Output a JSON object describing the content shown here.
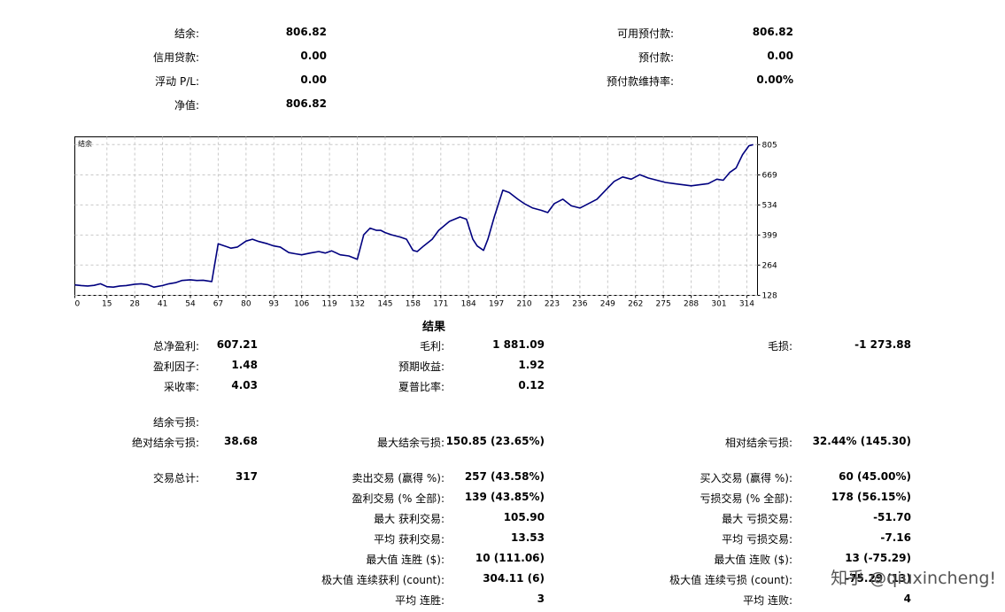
{
  "summary": {
    "balance_label": "结余:",
    "balance": "806.82",
    "credit_label": "信用贷款:",
    "credit": "0.00",
    "floating_label": "浮动 P/L:",
    "floating": "0.00",
    "equity_label": "净值:",
    "equity": "806.82",
    "free_margin_label": "可用预付款:",
    "free_margin": "806.82",
    "margin_label": "预付款:",
    "margin": "0.00",
    "margin_level_label": "预付款维持率:",
    "margin_level": "0.00%"
  },
  "chart_data": {
    "type": "line",
    "series": [
      {
        "name": "结余",
        "color": "#00007f",
        "x": [
          0,
          3,
          6,
          9,
          12,
          15,
          18,
          21,
          24,
          28,
          31,
          34,
          37,
          41,
          44,
          47,
          50,
          54,
          57,
          60,
          64,
          67,
          70,
          73,
          76,
          80,
          83,
          86,
          90,
          93,
          96,
          100,
          103,
          106,
          110,
          114,
          117,
          120,
          124,
          128,
          132,
          135,
          138,
          141,
          143,
          145,
          148,
          152,
          155,
          158,
          160,
          163,
          167,
          170,
          175,
          180,
          183,
          186,
          188,
          191,
          193,
          196,
          200,
          203,
          207,
          210,
          214,
          218,
          221,
          224,
          228,
          232,
          236,
          240,
          244,
          248,
          252,
          256,
          260,
          264,
          268,
          272,
          276,
          280,
          284,
          288,
          292,
          296,
          298,
          300,
          303,
          306,
          309,
          312,
          315,
          317
        ],
        "y": [
          175,
          172,
          170,
          173,
          180,
          167,
          165,
          170,
          172,
          178,
          180,
          176,
          165,
          172,
          180,
          185,
          195,
          198,
          195,
          196,
          190,
          360,
          350,
          340,
          345,
          372,
          380,
          370,
          360,
          350,
          345,
          320,
          315,
          310,
          318,
          325,
          318,
          328,
          310,
          305,
          290,
          400,
          430,
          420,
          420,
          410,
          400,
          390,
          380,
          330,
          325,
          350,
          380,
          420,
          460,
          480,
          470,
          380,
          350,
          330,
          380,
          480,
          600,
          590,
          560,
          540,
          520,
          510,
          500,
          540,
          560,
          530,
          520,
          540,
          560,
          600,
          640,
          660,
          650,
          670,
          655,
          645,
          635,
          630,
          625,
          620,
          625,
          630,
          640,
          650,
          645,
          680,
          700,
          760,
          800,
          805
        ]
      }
    ],
    "title": "结余",
    "xticks": [
      "0",
      "15",
      "28",
      "41",
      "54",
      "67",
      "80",
      "93",
      "106",
      "119",
      "132",
      "145",
      "158",
      "171",
      "184",
      "197",
      "210",
      "223",
      "236",
      "249",
      "262",
      "275",
      "288",
      "301",
      "314"
    ],
    "yticks": [
      "805",
      "669",
      "534",
      "399",
      "264",
      "128"
    ],
    "xlim": [
      0,
      319
    ],
    "ylim": [
      128,
      840
    ],
    "grid": true
  },
  "results": {
    "title": "结果",
    "net_profit_label": "总净盈利:",
    "net_profit": "607.21",
    "gross_profit_label": "毛利:",
    "gross_profit": "1 881.09",
    "gross_loss_label": "毛损:",
    "gross_loss": "-1 273.88",
    "profit_factor_label": "盈利因子:",
    "profit_factor": "1.48",
    "expected_payoff_label": "预期收益:",
    "expected_payoff": "1.92",
    "recovery_factor_label": "采收率:",
    "recovery_factor": "4.03",
    "sharpe_label": "夏普比率:",
    "sharpe": "0.12",
    "drawdown_label": "结余亏损:",
    "abs_drawdown_label": "绝对结余亏损:",
    "abs_drawdown": "38.68",
    "max_drawdown_label": "最大结余亏损:",
    "max_drawdown": "150.85 (23.65%)",
    "rel_drawdown_label": "相对结余亏损:",
    "rel_drawdown": "32.44% (145.30)",
    "total_trades_label": "交易总计:",
    "total_trades": "317",
    "short_trades_label": "卖出交易 (赢得 %):",
    "short_trades": "257 (43.58%)",
    "long_trades_label": "买入交易 (赢得 %):",
    "long_trades": "60 (45.00%)",
    "profit_trades_label": "盈利交易 (% 全部):",
    "profit_trades": "139 (43.85%)",
    "loss_trades_label": "亏损交易 (% 全部):",
    "loss_trades": "178 (56.15%)",
    "largest_profit_label": "最大 获利交易:",
    "largest_profit": "105.90",
    "largest_loss_label": "最大 亏损交易:",
    "largest_loss": "-51.70",
    "avg_profit_label": "平均 获利交易:",
    "avg_profit": "13.53",
    "avg_loss_label": "平均 亏损交易:",
    "avg_loss": "-7.16",
    "max_consec_wins_label": "最大值 连胜 ($):",
    "max_consec_wins": "10 (111.06)",
    "max_consec_losses_label": "最大值 连败 ($):",
    "max_consec_losses": "13 (-75.29)",
    "max_consec_profit_label": "极大值 连续获利 (count):",
    "max_consec_profit": "304.11 (6)",
    "max_consec_loss_label": "极大值 连续亏损 (count):",
    "max_consec_loss": "-75.29 (13)",
    "avg_consec_wins_label": "平均 连胜:",
    "avg_consec_wins": "3",
    "avg_consec_losses_label": "平均 连败:",
    "avg_consec_losses": "4"
  },
  "watermark": "知乎 @qiuxincheng!"
}
